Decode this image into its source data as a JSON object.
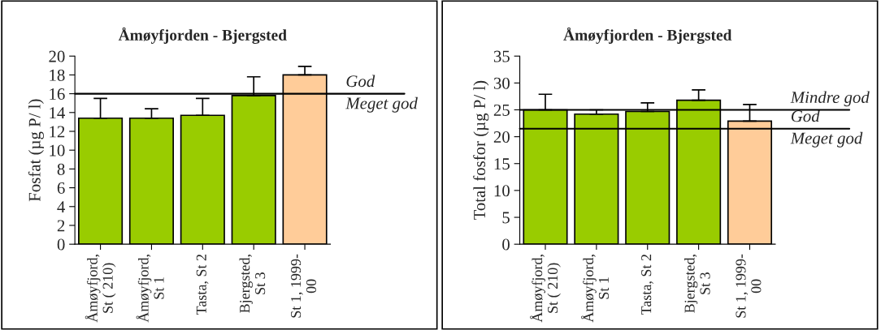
{
  "chart_data": [
    {
      "type": "bar",
      "title": "Åmøyfjorden - Bjergsted",
      "ylabel": "Fosfat (µg P/ l)",
      "categories": [
        "Åmøyfjord,\nSt ( 210)",
        "Åmøyfjord,\nSt 1",
        "Tasta, St 2",
        "Bjergsted,\nSt 3",
        "St 1, 1999-\n00"
      ],
      "values": [
        13.4,
        13.4,
        13.7,
        15.8,
        18.0
      ],
      "colors": [
        "#99cc00",
        "#99cc00",
        "#99cc00",
        "#99cc00",
        "#ffcc99"
      ],
      "errors": [
        [
          13.4,
          15.5
        ],
        [
          13.4,
          14.4
        ],
        [
          13.7,
          15.5
        ],
        [
          15.8,
          17.8
        ],
        [
          18.0,
          18.9
        ]
      ],
      "ylim": [
        0,
        20
      ],
      "yticks": [
        0,
        2,
        4,
        6,
        8,
        10,
        12,
        14,
        16,
        18,
        20
      ],
      "ref_lines": [
        {
          "axis": "y",
          "value": 16,
          "color": "#000000"
        }
      ],
      "annotations": [
        "God",
        "Meget god"
      ],
      "grid": false,
      "legend": false
    },
    {
      "type": "bar",
      "title": "Åmøyfjorden - Bjergsted",
      "ylabel": "Total fosfor (µg P/ l)",
      "categories": [
        "Åmøyfjord,\nSt ( 210)",
        "Åmøyfjord,\nSt 1",
        "Tasta, St 2",
        "Bjergsted,\nSt 3",
        "St 1, 1999-\n00"
      ],
      "values": [
        25.0,
        24.2,
        24.7,
        26.8,
        22.9
      ],
      "colors": [
        "#99cc00",
        "#99cc00",
        "#99cc00",
        "#99cc00",
        "#ffcc99"
      ],
      "errors": [
        [
          25.0,
          27.9
        ],
        [
          24.2,
          25.0
        ],
        [
          24.7,
          26.3
        ],
        [
          26.8,
          28.7
        ],
        [
          22.9,
          26.0
        ]
      ],
      "ylim": [
        0,
        35
      ],
      "yticks": [
        0,
        5,
        10,
        15,
        20,
        25,
        30,
        35
      ],
      "ref_lines": [
        {
          "axis": "y",
          "value": 25,
          "color": "#000000"
        },
        {
          "axis": "y",
          "value": 21.5,
          "color": "#000000"
        }
      ],
      "annotations": [
        "Mindre god",
        "God",
        "Meget god"
      ],
      "grid": false,
      "legend": false
    }
  ]
}
